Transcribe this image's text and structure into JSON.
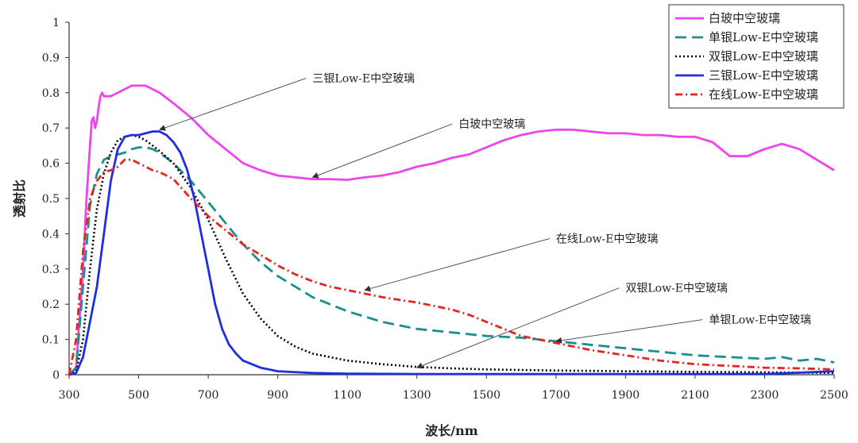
{
  "chart_data": {
    "type": "line",
    "title": "",
    "xlabel": "波长/nm",
    "ylabel": "透射比",
    "xlim": [
      300,
      2500
    ],
    "ylim": [
      0,
      1
    ],
    "xticks": [
      300,
      500,
      700,
      900,
      1100,
      1300,
      1500,
      1700,
      1900,
      2100,
      2300,
      2500
    ],
    "yticks": [
      0,
      0.1,
      0.2,
      0.3,
      0.4,
      0.5,
      0.6,
      0.7,
      0.8,
      0.9,
      1
    ],
    "ytick_labels": [
      "0",
      "0.1",
      "0.2",
      "0.3",
      "0.4",
      "0.5",
      "0.6",
      "0.7",
      "0.8",
      "0.9",
      "1"
    ],
    "legend_position": "top-right",
    "series": [
      {
        "name": "白玻中空玻璃",
        "color": "#ee44ee",
        "style": "solid",
        "x": [
          300,
          320,
          340,
          350,
          360,
          365,
          370,
          375,
          380,
          385,
          390,
          395,
          400,
          420,
          440,
          460,
          480,
          500,
          520,
          540,
          560,
          600,
          650,
          700,
          750,
          800,
          850,
          900,
          950,
          1000,
          1050,
          1100,
          1150,
          1200,
          1250,
          1300,
          1350,
          1400,
          1450,
          1500,
          1550,
          1600,
          1650,
          1700,
          1750,
          1800,
          1850,
          1900,
          1950,
          2000,
          2050,
          2100,
          2150,
          2200,
          2250,
          2300,
          2350,
          2400,
          2450,
          2500
        ],
        "y": [
          0.0,
          0.02,
          0.3,
          0.5,
          0.65,
          0.72,
          0.73,
          0.7,
          0.72,
          0.76,
          0.79,
          0.8,
          0.79,
          0.79,
          0.8,
          0.81,
          0.82,
          0.82,
          0.82,
          0.81,
          0.8,
          0.77,
          0.73,
          0.68,
          0.64,
          0.6,
          0.58,
          0.565,
          0.56,
          0.555,
          0.555,
          0.553,
          0.56,
          0.565,
          0.575,
          0.59,
          0.6,
          0.615,
          0.625,
          0.645,
          0.665,
          0.68,
          0.69,
          0.695,
          0.695,
          0.69,
          0.685,
          0.685,
          0.68,
          0.68,
          0.675,
          0.675,
          0.66,
          0.62,
          0.62,
          0.64,
          0.655,
          0.64,
          0.61,
          0.58
        ]
      },
      {
        "name": "单银Low-E中空玻璃",
        "color": "#1a8f8f",
        "style": "dash",
        "x": [
          300,
          320,
          340,
          360,
          380,
          400,
          420,
          440,
          460,
          480,
          500,
          520,
          540,
          560,
          600,
          650,
          700,
          750,
          800,
          850,
          900,
          1000,
          1100,
          1200,
          1300,
          1400,
          1500,
          1600,
          1700,
          1800,
          1900,
          2000,
          2100,
          2200,
          2300,
          2350,
          2400,
          2450,
          2500
        ],
        "y": [
          0.0,
          0.02,
          0.25,
          0.48,
          0.57,
          0.61,
          0.62,
          0.625,
          0.63,
          0.64,
          0.645,
          0.645,
          0.64,
          0.63,
          0.6,
          0.55,
          0.49,
          0.43,
          0.37,
          0.32,
          0.28,
          0.22,
          0.18,
          0.15,
          0.13,
          0.12,
          0.11,
          0.105,
          0.095,
          0.085,
          0.075,
          0.065,
          0.055,
          0.05,
          0.045,
          0.05,
          0.04,
          0.045,
          0.035
        ]
      },
      {
        "name": "双银Low-E中空玻璃",
        "color": "#000000",
        "style": "dot",
        "x": [
          300,
          320,
          340,
          360,
          380,
          400,
          420,
          440,
          460,
          480,
          500,
          520,
          540,
          560,
          600,
          650,
          700,
          750,
          800,
          850,
          900,
          950,
          1000,
          1100,
          1200,
          1300,
          1400,
          1500,
          1700,
          1900,
          2100,
          2300,
          2500
        ],
        "y": [
          0.0,
          0.01,
          0.1,
          0.3,
          0.47,
          0.57,
          0.63,
          0.665,
          0.675,
          0.68,
          0.675,
          0.665,
          0.65,
          0.635,
          0.6,
          0.53,
          0.44,
          0.33,
          0.23,
          0.16,
          0.11,
          0.08,
          0.06,
          0.04,
          0.03,
          0.022,
          0.018,
          0.015,
          0.012,
          0.01,
          0.008,
          0.007,
          0.005
        ]
      },
      {
        "name": "三银Low-E中空玻璃",
        "color": "#1f2fe0",
        "style": "solid",
        "x": [
          300,
          320,
          340,
          360,
          380,
          400,
          420,
          440,
          460,
          480,
          500,
          520,
          540,
          560,
          580,
          600,
          620,
          640,
          660,
          680,
          700,
          720,
          740,
          760,
          780,
          800,
          850,
          900,
          1000,
          1100,
          1300,
          1500,
          1700,
          1900,
          2100,
          2300,
          2500
        ],
        "y": [
          0.0,
          0.005,
          0.05,
          0.15,
          0.25,
          0.4,
          0.55,
          0.64,
          0.675,
          0.68,
          0.68,
          0.685,
          0.69,
          0.69,
          0.68,
          0.66,
          0.63,
          0.58,
          0.5,
          0.4,
          0.3,
          0.2,
          0.13,
          0.085,
          0.06,
          0.04,
          0.02,
          0.01,
          0.005,
          0.003,
          0.002,
          0.002,
          0.002,
          0.002,
          0.002,
          0.002,
          0.01
        ]
      },
      {
        "name": "在线Low-E中空玻璃",
        "color": "#e8241e",
        "style": "dashdot",
        "x": [
          300,
          320,
          340,
          360,
          380,
          400,
          420,
          440,
          460,
          480,
          500,
          520,
          540,
          560,
          600,
          650,
          700,
          750,
          800,
          850,
          900,
          950,
          1000,
          1050,
          1100,
          1200,
          1300,
          1350,
          1400,
          1450,
          1500,
          1550,
          1600,
          1700,
          1800,
          1900,
          2000,
          2100,
          2200,
          2300,
          2400,
          2500
        ],
        "y": [
          0.0,
          0.1,
          0.35,
          0.5,
          0.55,
          0.575,
          0.58,
          0.59,
          0.61,
          0.61,
          0.6,
          0.59,
          0.58,
          0.575,
          0.555,
          0.5,
          0.45,
          0.41,
          0.37,
          0.34,
          0.31,
          0.285,
          0.265,
          0.25,
          0.24,
          0.22,
          0.205,
          0.195,
          0.185,
          0.17,
          0.15,
          0.13,
          0.11,
          0.09,
          0.07,
          0.055,
          0.04,
          0.03,
          0.025,
          0.02,
          0.018,
          0.015
        ]
      }
    ],
    "annotations": [
      {
        "text": "三银Low-E中空玻璃",
        "target": [
          560,
          0.695
        ],
        "label_at": [
          1000,
          0.83
        ]
      },
      {
        "text": "白玻中空玻璃",
        "target": [
          1000,
          0.56
        ],
        "label_at": [
          1420,
          0.7
        ]
      },
      {
        "text": "在线Low-E中空玻璃",
        "target": [
          1150,
          0.24
        ],
        "label_at": [
          1700,
          0.375
        ]
      },
      {
        "text": "双银Low-E中空玻璃",
        "target": [
          1300,
          0.02
        ],
        "label_at": [
          1900,
          0.235
        ]
      },
      {
        "text": "单银Low-E中空玻璃",
        "target": [
          1700,
          0.095
        ],
        "label_at": [
          2140,
          0.145
        ]
      }
    ]
  }
}
